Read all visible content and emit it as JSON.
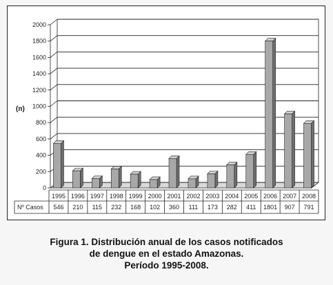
{
  "chart_data": {
    "type": "bar",
    "ylabel": "(n)",
    "ylim": [
      0,
      2000
    ],
    "yticks": [
      0,
      200,
      400,
      600,
      800,
      1000,
      1200,
      1400,
      1600,
      1800,
      2000
    ],
    "grid": true,
    "categories": [
      "1995",
      "1996",
      "1997",
      "1998",
      "1999",
      "2000",
      "2001",
      "2002",
      "2003",
      "2004",
      "2005",
      "2006",
      "2007",
      "2008"
    ],
    "series": [
      {
        "name": "Nº Casos",
        "values": [
          546,
          210,
          115,
          232,
          168,
          102,
          360,
          111,
          173,
          282,
          411,
          1801,
          907,
          791
        ]
      }
    ],
    "table_row_label": "Nº Casos",
    "bar_color": "#a8a8a8"
  },
  "caption": {
    "line1": "Figura 1. Distribución anual de los casos notificados",
    "line2": "de dengue en el estado Amazonas.",
    "line3": "Período 1995-2008."
  }
}
